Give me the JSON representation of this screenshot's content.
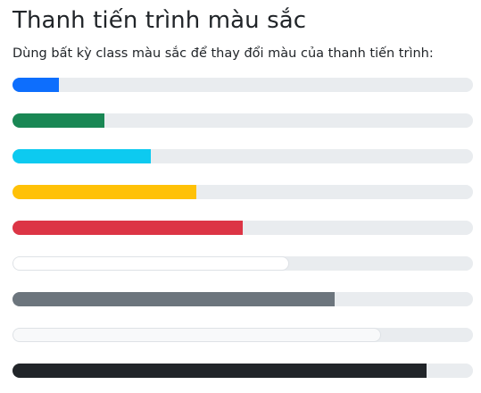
{
  "header": {
    "title": "Thanh tiến trình màu sắc",
    "description": "Dùng bất kỳ class màu sắc để thay đổi màu của thanh tiến trình:"
  },
  "progress_bars": [
    {
      "variant": "primary",
      "color": "#0d6efd",
      "value": 10
    },
    {
      "variant": "success",
      "color": "#198754",
      "value": 20
    },
    {
      "variant": "info",
      "color": "#0dcaf0",
      "value": 30
    },
    {
      "variant": "warning",
      "color": "#ffc107",
      "value": 40
    },
    {
      "variant": "danger",
      "color": "#dc3545",
      "value": 50
    },
    {
      "variant": "white",
      "color": "#ffffff",
      "value": 60
    },
    {
      "variant": "secondary",
      "color": "#6c757d",
      "value": 70
    },
    {
      "variant": "light",
      "color": "#f8f9fa",
      "value": 80
    },
    {
      "variant": "dark",
      "color": "#212529",
      "value": 90
    }
  ],
  "track_color": "#e9ecef"
}
